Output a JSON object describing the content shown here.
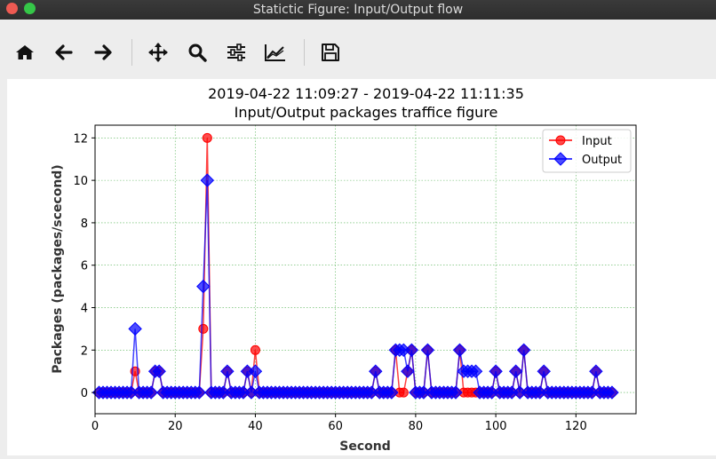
{
  "window": {
    "title": "Statictic Figure: Input/Output flow"
  },
  "toolbar": {
    "buttons": [
      {
        "name": "home-button",
        "icon": "home-icon"
      },
      {
        "name": "back-button",
        "icon": "arrow-left-icon"
      },
      {
        "name": "forward-button",
        "icon": "arrow-right-icon"
      },
      {
        "name": "pan-button",
        "icon": "move-icon"
      },
      {
        "name": "zoom-button",
        "icon": "search-icon"
      },
      {
        "name": "configure-subplots-button",
        "icon": "sliders-icon"
      },
      {
        "name": "edit-axes-button",
        "icon": "line-chart-icon"
      },
      {
        "name": "save-button",
        "icon": "save-icon"
      }
    ]
  },
  "chart_data": {
    "type": "line",
    "title": "2019-04-22 11:09:27 - 2019-04-22 11:11:35",
    "subtitle": "Input/Output packages traffice figure",
    "xlabel": "Second",
    "ylabel": "Packages (packages/scecond)",
    "xlim": [
      0,
      135
    ],
    "ylim": [
      -1,
      12.6
    ],
    "xticks": [
      0,
      20,
      40,
      60,
      80,
      100,
      120
    ],
    "yticks": [
      0,
      2,
      4,
      6,
      8,
      10,
      12
    ],
    "grid": true,
    "legend_position": "top-right",
    "series": [
      {
        "name": "Input",
        "color": "#ff0000",
        "marker": "circle",
        "x": [
          1,
          2,
          3,
          4,
          5,
          6,
          7,
          8,
          9,
          10,
          11,
          12,
          13,
          14,
          15,
          16,
          17,
          18,
          19,
          20,
          21,
          22,
          23,
          24,
          25,
          26,
          27,
          28,
          29,
          30,
          31,
          32,
          33,
          34,
          35,
          36,
          37,
          38,
          39,
          40,
          41,
          42,
          43,
          44,
          45,
          46,
          47,
          48,
          49,
          50,
          51,
          52,
          53,
          54,
          55,
          56,
          57,
          58,
          59,
          60,
          61,
          62,
          63,
          64,
          65,
          66,
          67,
          68,
          69,
          70,
          71,
          72,
          73,
          74,
          75,
          76,
          77,
          78,
          79,
          80,
          81,
          82,
          83,
          84,
          85,
          86,
          87,
          88,
          89,
          90,
          91,
          92,
          93,
          94,
          95,
          96,
          97,
          98,
          99,
          100,
          101,
          102,
          103,
          104,
          105,
          106,
          107,
          108,
          109,
          110,
          111,
          112,
          113,
          114,
          115,
          116,
          117,
          118,
          119,
          120,
          121,
          122,
          123,
          124,
          125,
          126,
          127,
          128,
          129
        ],
        "y": [
          0,
          0,
          0,
          0,
          0,
          0,
          0,
          0,
          0,
          1,
          0,
          0,
          0,
          0,
          1,
          1,
          0,
          0,
          0,
          0,
          0,
          0,
          0,
          0,
          0,
          0,
          3,
          12,
          0,
          0,
          0,
          0,
          1,
          0,
          0,
          0,
          0,
          1,
          0,
          2,
          0,
          0,
          0,
          0,
          0,
          0,
          0,
          0,
          0,
          0,
          0,
          0,
          0,
          0,
          0,
          0,
          0,
          0,
          0,
          0,
          0,
          0,
          0,
          0,
          0,
          0,
          0,
          0,
          0,
          1,
          0,
          0,
          0,
          0,
          2,
          0,
          0,
          1,
          2,
          0,
          0,
          0,
          2,
          0,
          0,
          0,
          0,
          0,
          0,
          0,
          2,
          0,
          0,
          0,
          0,
          0,
          0,
          0,
          0,
          1,
          0,
          0,
          0,
          0,
          1,
          0,
          2,
          0,
          0,
          0,
          0,
          1,
          0,
          0,
          0,
          0,
          0,
          0,
          0,
          0,
          0,
          0,
          0,
          0,
          1,
          0,
          0,
          0,
          0
        ]
      },
      {
        "name": "Output",
        "color": "#0000ff",
        "marker": "diamond",
        "x": [
          1,
          2,
          3,
          4,
          5,
          6,
          7,
          8,
          9,
          10,
          11,
          12,
          13,
          14,
          15,
          16,
          17,
          18,
          19,
          20,
          21,
          22,
          23,
          24,
          25,
          26,
          27,
          28,
          29,
          30,
          31,
          32,
          33,
          34,
          35,
          36,
          37,
          38,
          39,
          40,
          41,
          42,
          43,
          44,
          45,
          46,
          47,
          48,
          49,
          50,
          51,
          52,
          53,
          54,
          55,
          56,
          57,
          58,
          59,
          60,
          61,
          62,
          63,
          64,
          65,
          66,
          67,
          68,
          69,
          70,
          71,
          72,
          73,
          74,
          75,
          76,
          77,
          78,
          79,
          80,
          81,
          82,
          83,
          84,
          85,
          86,
          87,
          88,
          89,
          90,
          91,
          92,
          93,
          94,
          95,
          96,
          97,
          98,
          99,
          100,
          101,
          102,
          103,
          104,
          105,
          106,
          107,
          108,
          109,
          110,
          111,
          112,
          113,
          114,
          115,
          116,
          117,
          118,
          119,
          120,
          121,
          122,
          123,
          124,
          125,
          126,
          127,
          128,
          129
        ],
        "y": [
          0,
          0,
          0,
          0,
          0,
          0,
          0,
          0,
          0,
          3,
          0,
          0,
          0,
          0,
          1,
          1,
          0,
          0,
          0,
          0,
          0,
          0,
          0,
          0,
          0,
          0,
          5,
          10,
          0,
          0,
          0,
          0,
          1,
          0,
          0,
          0,
          0,
          1,
          0,
          1,
          0,
          0,
          0,
          0,
          0,
          0,
          0,
          0,
          0,
          0,
          0,
          0,
          0,
          0,
          0,
          0,
          0,
          0,
          0,
          0,
          0,
          0,
          0,
          0,
          0,
          0,
          0,
          0,
          0,
          1,
          0,
          0,
          0,
          0,
          2,
          2,
          2,
          1,
          2,
          0,
          0,
          0,
          2,
          0,
          0,
          0,
          0,
          0,
          0,
          0,
          2,
          1,
          1,
          1,
          1,
          0,
          0,
          0,
          0,
          1,
          0,
          0,
          0,
          0,
          1,
          0,
          2,
          0,
          0,
          0,
          0,
          1,
          0,
          0,
          0,
          0,
          0,
          0,
          0,
          0,
          0,
          0,
          0,
          0,
          1,
          0,
          0,
          0,
          0
        ]
      }
    ]
  }
}
